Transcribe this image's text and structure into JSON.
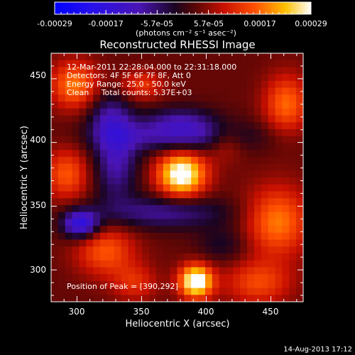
{
  "chart_data": {
    "type": "heatmap",
    "title": "Reconstructed RHESSI Image",
    "xlabel": "Heliocentric X (arcsec)",
    "ylabel": "Heliocentric Y (arcsec)",
    "xlim": [
      280,
      475
    ],
    "ylim": [
      275,
      470
    ],
    "x_ticks": [
      300,
      350,
      400,
      450
    ],
    "y_ticks": [
      300,
      350,
      400,
      450
    ],
    "colorbar": {
      "ticks": [
        "-0.00029",
        "-0.00017",
        "-5.7e-05",
        "5.7e-05",
        "0.00017",
        "0.00029"
      ],
      "vmin": -0.00029,
      "vmax": 0.00029,
      "unit_text": "(photons cm⁻² s⁻¹ asec⁻²)"
    },
    "annotations": [
      "12-Mar-2011 22:28:04.000 to 22:31:18.000",
      "Detectors: 4F 5F 6F 7F 8F, Att 0",
      "Energy Range: 25.0 - 50.0 keV",
      "Clean     Total counts: 5.37E+03"
    ],
    "peak_label": "Position of Peak = [390,292]",
    "footer_date": "14-Aug-2013 17:12",
    "sources": [
      {
        "x": 381,
        "y": 375,
        "amp": 1.0,
        "sx": 13,
        "sy": 12
      },
      {
        "x": 392,
        "y": 291,
        "amp": 1.05,
        "sx": 9,
        "sy": 9
      },
      {
        "x": 455,
        "y": 338,
        "amp": 0.55,
        "sx": 17,
        "sy": 19
      },
      {
        "x": 462,
        "y": 430,
        "amp": 0.5,
        "sx": 12,
        "sy": 16
      },
      {
        "x": 298,
        "y": 445,
        "amp": 0.55,
        "sx": 13,
        "sy": 13
      },
      {
        "x": 292,
        "y": 375,
        "amp": 0.45,
        "sx": 12,
        "sy": 14
      },
      {
        "x": 322,
        "y": 315,
        "amp": 0.45,
        "sx": 16,
        "sy": 14
      },
      {
        "x": 440,
        "y": 290,
        "amp": 0.4,
        "sx": 18,
        "sy": 12
      },
      {
        "x": 350,
        "y": 445,
        "amp": 0.35,
        "sx": 12,
        "sy": 8
      },
      {
        "x": 415,
        "y": 400,
        "amp": 0.25,
        "sx": 10,
        "sy": 10
      },
      {
        "x": 345,
        "y": 290,
        "amp": 0.3,
        "sx": 12,
        "sy": 10
      },
      {
        "x": 413,
        "y": 320,
        "amp": -0.2,
        "sx": 14,
        "sy": 10
      },
      {
        "x": 380,
        "y": 405,
        "amp": -0.45,
        "sx": 40,
        "sy": 9
      },
      {
        "x": 330,
        "y": 385,
        "amp": -0.45,
        "sx": 12,
        "sy": 22
      },
      {
        "x": 368,
        "y": 345,
        "amp": -0.4,
        "sx": 35,
        "sy": 9
      },
      {
        "x": 303,
        "y": 336,
        "amp": -0.75,
        "sx": 10,
        "sy": 8
      },
      {
        "x": 380,
        "y": 418,
        "amp": -0.3,
        "sx": 20,
        "sy": 8
      },
      {
        "x": 325,
        "y": 420,
        "amp": -0.35,
        "sx": 12,
        "sy": 14
      }
    ]
  }
}
